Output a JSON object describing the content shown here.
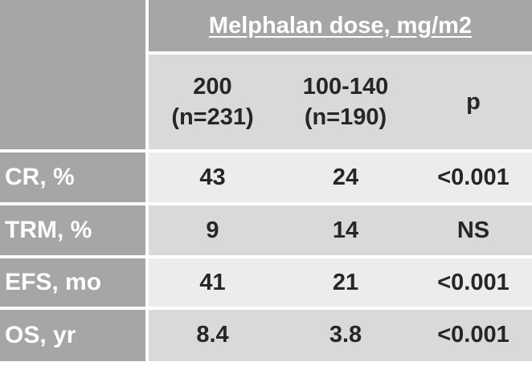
{
  "header": {
    "title": "Melphalan dose, mg/m2",
    "columns": [
      {
        "line1": "200",
        "line2": "(n=231)"
      },
      {
        "line1": "100-140",
        "line2": "(n=190)"
      },
      {
        "line1": "p",
        "line2": ""
      }
    ]
  },
  "rows": [
    {
      "label": "CR, %",
      "v200": "43",
      "v100": "24",
      "p": "<0.001"
    },
    {
      "label": "TRM, %",
      "v200": "9",
      "v100": "14",
      "p": "NS"
    },
    {
      "label": "EFS, mo",
      "v200": "41",
      "v100": "21",
      "p": "<0.001"
    },
    {
      "label": "OS, yr",
      "v200": "8.4",
      "v100": "3.8",
      "p": "<0.001"
    }
  ],
  "colors": {
    "label_bg": "#a6a6a6",
    "band_dark": "#d9d9d9",
    "band_light": "#ececec",
    "text": "#262626"
  }
}
